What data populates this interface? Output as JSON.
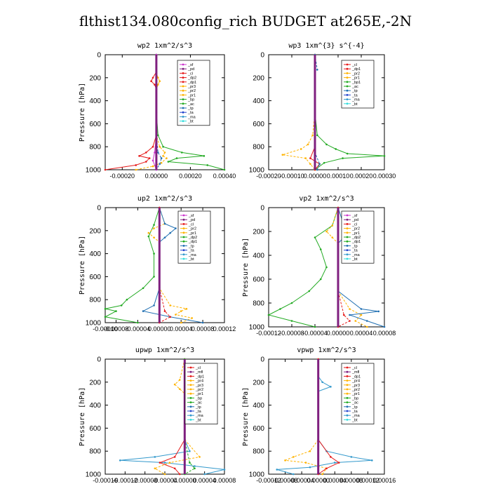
{
  "title": "flthist134.080config_rich  BUDGET at265E,-2N",
  "colors": {
    "sf": "#cc33cc",
    "pd": "#7f1f7f",
    "cl": "#e61a1a",
    "dp": "#e61a1a",
    "pr": "#ffb300",
    "bp": "#22aa22",
    "ac": "#22aa22",
    "tp": "#1f6fb2",
    "ta": "#2244cc",
    "ma": "#3399cc",
    "bt": "#33dddd",
    "mfl": "#7f1f7f"
  },
  "chart_data": [
    {
      "type": "line",
      "title": "wp2  1xm^2/s^3",
      "ylabel": "Pressure [hPa]",
      "ylim": [
        0,
        1000
      ],
      "xlim": [
        -0.0003,
        0.0004
      ],
      "xticks": [
        "-0.00020",
        "0.00000",
        "0.00020",
        "0.00040"
      ],
      "xtick_values": [
        -0.0002,
        0.0,
        0.0002,
        0.0004
      ],
      "yticks": [
        "0",
        "200",
        "400",
        "600",
        "800",
        "1000"
      ],
      "legend": [
        "_sf",
        "_pd",
        "_cl",
        "_dp2",
        "_dp1",
        "_pr3",
        "_pr2",
        "_pr1",
        "_bp",
        "_ac",
        "_tp",
        "_ta",
        "_ma",
        "_bt"
      ],
      "legend_colors": [
        "#cc33cc",
        "#7f1f7f",
        "#e61a1a",
        "#e61a1a",
        "#e61a1a",
        "#ffb300",
        "#ffb300",
        "#ffb300",
        "#22aa22",
        "#22aa22",
        "#1f6fb2",
        "#2244cc",
        "#3399cc",
        "#33dddd"
      ],
      "series": [
        {
          "color": "#e61a1a",
          "p": [
            0,
            150,
            200,
            230,
            260,
            300,
            700,
            800,
            850,
            880,
            900,
            930,
            960,
            1000
          ],
          "values": [
            0,
            0,
            -2e-05,
            -3e-05,
            -1e-05,
            0,
            0,
            -2e-05,
            -6e-05,
            -0.0001,
            -4e-05,
            -6e-05,
            -0.00012,
            -0.0003
          ]
        },
        {
          "color": "#ffb300",
          "p": [
            0,
            150,
            200,
            230,
            260,
            300,
            700,
            800,
            850,
            880,
            900,
            940,
            970,
            1000
          ],
          "values": [
            0,
            0,
            1e-05,
            2e-05,
            1e-05,
            0,
            0,
            2e-05,
            5e-05,
            4e-05,
            6e-05,
            3e-05,
            -2e-05,
            -0.00012
          ]
        },
        {
          "color": "#22aa22",
          "p": [
            0,
            200,
            500,
            700,
            800,
            850,
            880,
            900,
            930,
            960,
            1000
          ],
          "values": [
            0,
            0,
            0,
            1e-05,
            4e-05,
            0.00015,
            0.00028,
            0.00012,
            7e-05,
            0.0003,
            0.0004
          ]
        },
        {
          "color": "#1f6fb2",
          "p": [
            0,
            200,
            700,
            850,
            900,
            950,
            1000
          ],
          "values": [
            0,
            0,
            0,
            1e-05,
            3e-05,
            2e-05,
            0
          ]
        },
        {
          "color": "#cc33cc",
          "p": [
            0,
            200,
            700,
            850,
            920,
            1000
          ],
          "values": [
            0,
            0,
            0,
            -1e-05,
            -2e-05,
            0
          ]
        },
        {
          "color": "#7f1f7f",
          "p": [
            0,
            1000
          ],
          "values": [
            0,
            0
          ]
        }
      ]
    },
    {
      "type": "line",
      "title": "wp3  1xm^{3} s^{-4}",
      "ylabel": "",
      "ylim": [
        0,
        1000
      ],
      "xlim": [
        -0.0002,
        0.0003
      ],
      "xticks": [
        "-0.00020",
        "-0.00010",
        "0.00000",
        "0.00010",
        "0.00020",
        "0.00030"
      ],
      "xtick_values": [
        -0.0002,
        -0.0001,
        0.0,
        0.0001,
        0.0002,
        0.0003
      ],
      "yticks": [
        "0",
        "200",
        "400",
        "600",
        "800",
        "1000"
      ],
      "legend": [
        "_cl",
        "_dp1",
        "_pr2",
        "_pr1",
        "_bp1",
        "_ac",
        "_tp",
        "_ta",
        "_ma",
        "_bt"
      ],
      "legend_colors": [
        "#e61a1a",
        "#e61a1a",
        "#ffb300",
        "#ffb300",
        "#22aa22",
        "#22aa22",
        "#1f6fb2",
        "#2244cc",
        "#3399cc",
        "#33dddd"
      ],
      "series": [
        {
          "color": "#22aa22",
          "p": [
            0,
            150,
            500,
            700,
            780,
            820,
            860,
            880,
            900,
            940,
            1000
          ],
          "values": [
            0,
            0,
            0,
            1e-05,
            5e-05,
            9e-05,
            0.00014,
            0.0003,
            0.00012,
            4e-05,
            0
          ]
        },
        {
          "color": "#ffb300",
          "p": [
            0,
            150,
            500,
            700,
            780,
            820,
            870,
            900,
            950,
            1000
          ],
          "values": [
            0,
            0,
            0,
            -1e-05,
            -3e-05,
            -6e-05,
            -0.00014,
            -4e-05,
            -2e-05,
            0
          ]
        },
        {
          "color": "#e61a1a",
          "p": [
            0,
            140,
            500,
            800,
            900,
            950,
            1000
          ],
          "values": [
            0,
            0,
            0,
            0,
            -2e-05,
            2e-05,
            0
          ]
        },
        {
          "color": "#1f6fb2",
          "p": [
            0,
            130,
            150,
            500,
            850,
            950,
            1000
          ],
          "values": [
            0,
            1e-05,
            0,
            0,
            0,
            2e-05,
            1e-05
          ]
        },
        {
          "color": "#7f1f7f",
          "p": [
            0,
            1000
          ],
          "values": [
            0,
            0
          ]
        }
      ]
    },
    {
      "type": "line",
      "title": "up2  1xm^2/s^3",
      "ylabel": "Pressure [hPa]",
      "ylim": [
        0,
        1000
      ],
      "xlim": [
        -0.0001,
        0.00012
      ],
      "xticks": [
        "-0.00010",
        "-0.00008",
        "-0.00004",
        "0.00000",
        "0.00004",
        "0.00008",
        "0.00012"
      ],
      "xtick_values": [
        -0.0001,
        -8e-05,
        -4e-05,
        0.0,
        4e-05,
        8e-05,
        0.00012
      ],
      "yticks": [
        "0",
        "200",
        "400",
        "600",
        "800",
        "1000"
      ],
      "legend": [
        "_sf",
        "_pd",
        "_cl",
        "_pr2",
        "_pr1",
        "_dp2",
        "_dp1",
        "_tp",
        "_ta",
        "_ma",
        "_bt"
      ],
      "legend_colors": [
        "#cc33cc",
        "#7f1f7f",
        "#e61a1a",
        "#ffb300",
        "#ffb300",
        "#22aa22",
        "#22aa22",
        "#1f6fb2",
        "#2244cc",
        "#3399cc",
        "#33dddd"
      ],
      "series": [
        {
          "color": "#22aa22",
          "p": [
            0,
            150,
            250,
            400,
            600,
            700,
            800,
            850,
            880,
            900,
            950,
            1000
          ],
          "values": [
            0,
            -1e-05,
            -2e-05,
            -1e-05,
            -1e-05,
            -3e-05,
            -6e-05,
            -7e-05,
            -0.0001,
            -8e-05,
            -0.0001,
            -4e-05
          ]
        },
        {
          "color": "#ffb300",
          "p": [
            0,
            140,
            180,
            220,
            260,
            300,
            700,
            850,
            880,
            900,
            930,
            960,
            1000
          ],
          "values": [
            0,
            1e-05,
            -1e-05,
            -2e-05,
            -1e-05,
            0,
            0,
            2e-05,
            5e-05,
            4e-05,
            3e-05,
            6e-05,
            4e-05
          ]
        },
        {
          "color": "#1f6fb2",
          "p": [
            0,
            140,
            180,
            220,
            260,
            300,
            700,
            850,
            900,
            950,
            1000
          ],
          "values": [
            0,
            1e-05,
            3e-05,
            2e-05,
            1e-05,
            0,
            0,
            -1e-05,
            -3e-05,
            2e-05,
            8e-05
          ]
        },
        {
          "color": "#e61a1a",
          "p": [
            0,
            700,
            900,
            950,
            1000
          ],
          "values": [
            0,
            0,
            1e-05,
            2e-05,
            0
          ]
        },
        {
          "color": "#7f1f7f",
          "p": [
            0,
            1000
          ],
          "values": [
            0,
            0
          ]
        }
      ]
    },
    {
      "type": "line",
      "title": "vp2  1xm^2/s^3",
      "ylabel": "Pressure [hPa]",
      "ylim": [
        0,
        1000
      ],
      "xlim": [
        -0.00012,
        8e-05
      ],
      "xticks": [
        "-0.00012",
        "-0.00008",
        "-0.00004",
        "0.00000",
        "0.00004",
        "0.00008"
      ],
      "xtick_values": [
        -0.00012,
        -8e-05,
        -4e-05,
        0.0,
        4e-05,
        8e-05
      ],
      "yticks": [
        "0",
        "200",
        "400",
        "600",
        "800",
        "1000"
      ],
      "legend": [
        "_sf",
        "_pd",
        "_cl",
        "_pr2",
        "_pr1",
        "_dp2",
        "_dp1",
        "_tp",
        "_ta",
        "_ma",
        "_bt"
      ],
      "legend_colors": [
        "#cc33cc",
        "#7f1f7f",
        "#e61a1a",
        "#ffb300",
        "#ffb300",
        "#22aa22",
        "#22aa22",
        "#1f6fb2",
        "#2244cc",
        "#3399cc",
        "#33dddd"
      ],
      "series": [
        {
          "color": "#22aa22",
          "p": [
            0,
            150,
            250,
            350,
            500,
            600,
            700,
            800,
            850,
            900,
            950,
            1000
          ],
          "values": [
            0,
            -1e-05,
            -4e-05,
            -3e-05,
            -2e-05,
            -3e-05,
            -5e-05,
            -8e-05,
            -0.0001,
            -0.00012,
            -8e-05,
            -4e-05
          ]
        },
        {
          "color": "#ffb300",
          "p": [
            0,
            150,
            200,
            250,
            300,
            700,
            850,
            900,
            950,
            1000
          ],
          "values": [
            0,
            -1e-05,
            -2e-05,
            -1e-05,
            0,
            0,
            2e-05,
            4e-05,
            3e-05,
            5e-05
          ]
        },
        {
          "color": "#1f6fb2",
          "p": [
            0,
            150,
            200,
            250,
            300,
            700,
            850,
            870,
            900,
            950,
            1000
          ],
          "values": [
            0,
            1e-05,
            2e-05,
            1e-05,
            0,
            0,
            4e-05,
            7e-05,
            2e-05,
            5e-05,
            8e-05
          ]
        },
        {
          "color": "#e61a1a",
          "p": [
            0,
            700,
            900,
            950,
            1000
          ],
          "values": [
            0,
            0,
            1e-05,
            2e-05,
            0
          ]
        },
        {
          "color": "#7f1f7f",
          "p": [
            0,
            1000
          ],
          "values": [
            0,
            0
          ]
        }
      ]
    },
    {
      "type": "line",
      "title": "upwp  1xm^2/s^3",
      "ylabel": "Pressure [hPa]",
      "ylim": [
        0,
        1000
      ],
      "xlim": [
        -0.00016,
        8e-05
      ],
      "xticks": [
        "-0.00016",
        "-0.00012",
        "-0.00008",
        "-0.00004",
        "0.00000",
        "0.00004",
        "0.00008"
      ],
      "xtick_values": [
        -0.00016,
        -0.00012,
        -8e-05,
        -4e-05,
        0.0,
        4e-05,
        8e-05
      ],
      "yticks": [
        "0",
        "200",
        "400",
        "600",
        "800",
        "1000"
      ],
      "legend": [
        "_cl",
        "_mfl",
        "_dp1",
        "_pr4",
        "_pr3",
        "_pr2",
        "_pr1",
        "_bp",
        "_ac",
        "_tp",
        "_ta",
        "_ma",
        "_bt"
      ],
      "legend_colors": [
        "#e61a1a",
        "#7f1f7f",
        "#e61a1a",
        "#ffb300",
        "#ffb300",
        "#ffb300",
        "#ffb300",
        "#22aa22",
        "#22aa22",
        "#1f6fb2",
        "#2244cc",
        "#3399cc",
        "#33dddd"
      ],
      "series": [
        {
          "color": "#3399cc",
          "p": [
            0,
            150,
            700,
            800,
            850,
            880,
            900,
            930,
            960,
            1000
          ],
          "values": [
            0,
            0,
            0,
            1e-05,
            -6e-05,
            -0.00013,
            -4e-05,
            2e-05,
            8e-05,
            4e-05
          ]
        },
        {
          "color": "#ffb300",
          "p": [
            0,
            180,
            220,
            260,
            300,
            700,
            850,
            900,
            950,
            1000
          ],
          "values": [
            0,
            -1e-05,
            -2e-05,
            -1e-05,
            0,
            0,
            3e-05,
            -3e-05,
            -6e-05,
            -4e-05
          ]
        },
        {
          "color": "#e61a1a",
          "p": [
            0,
            700,
            850,
            900,
            950,
            1000
          ],
          "values": [
            0,
            0,
            -2e-05,
            -5e-05,
            -2e-05,
            -1e-05
          ]
        },
        {
          "color": "#22aa22",
          "p": [
            0,
            700,
            900,
            950,
            1000
          ],
          "values": [
            0,
            0,
            1e-05,
            2e-05,
            0
          ]
        },
        {
          "color": "#7f1f7f",
          "p": [
            0,
            1000
          ],
          "values": [
            0,
            0
          ]
        }
      ]
    },
    {
      "type": "line",
      "title": "vpwp  1xm^2/s^3",
      "ylabel": "Pressure [hPa]",
      "ylim": [
        0,
        1000
      ],
      "xlim": [
        -0.00012,
        0.00016
      ],
      "xticks": [
        "-0.00012",
        "-0.00008",
        "-0.00004",
        "0.00000",
        "0.00004",
        "0.00008",
        "0.00012",
        "0.00016"
      ],
      "xtick_values": [
        -0.00012,
        -8e-05,
        -4e-05,
        0.0,
        4e-05,
        8e-05,
        0.00012,
        0.00016
      ],
      "yticks": [
        "0",
        "200",
        "400",
        "600",
        "800",
        "1000"
      ],
      "legend": [
        "_cl",
        "_mfl",
        "_dp1",
        "_pr4",
        "_pr3",
        "_pr2",
        "_pr1",
        "_bp",
        "_ac",
        "_tp",
        "_ta",
        "_ma",
        "_bt"
      ],
      "legend_colors": [
        "#e61a1a",
        "#7f1f7f",
        "#e61a1a",
        "#ffb300",
        "#ffb300",
        "#ffb300",
        "#ffb300",
        "#22aa22",
        "#22aa22",
        "#1f6fb2",
        "#2244cc",
        "#3399cc",
        "#33dddd"
      ],
      "series": [
        {
          "color": "#3399cc",
          "p": [
            0,
            150,
            200,
            240,
            280,
            700,
            800,
            850,
            880,
            900,
            940,
            960,
            1000
          ],
          "values": [
            0,
            0,
            1e-05,
            3e-05,
            0,
            0,
            2e-05,
            8e-05,
            0.00013,
            4e-05,
            -2e-05,
            -0.0001,
            -6e-05
          ]
        },
        {
          "color": "#ffb300",
          "p": [
            0,
            700,
            800,
            850,
            880,
            900,
            950,
            1000
          ],
          "values": [
            0,
            0,
            -2e-05,
            -6e-05,
            -8e-05,
            -3e-05,
            2e-05,
            1e-05
          ]
        },
        {
          "color": "#e61a1a",
          "p": [
            0,
            700,
            850,
            900,
            950,
            1000
          ],
          "values": [
            0,
            0,
            3e-05,
            5e-05,
            2e-05,
            0
          ]
        },
        {
          "color": "#7f1f7f",
          "p": [
            0,
            1000
          ],
          "values": [
            0,
            0
          ]
        }
      ]
    }
  ]
}
